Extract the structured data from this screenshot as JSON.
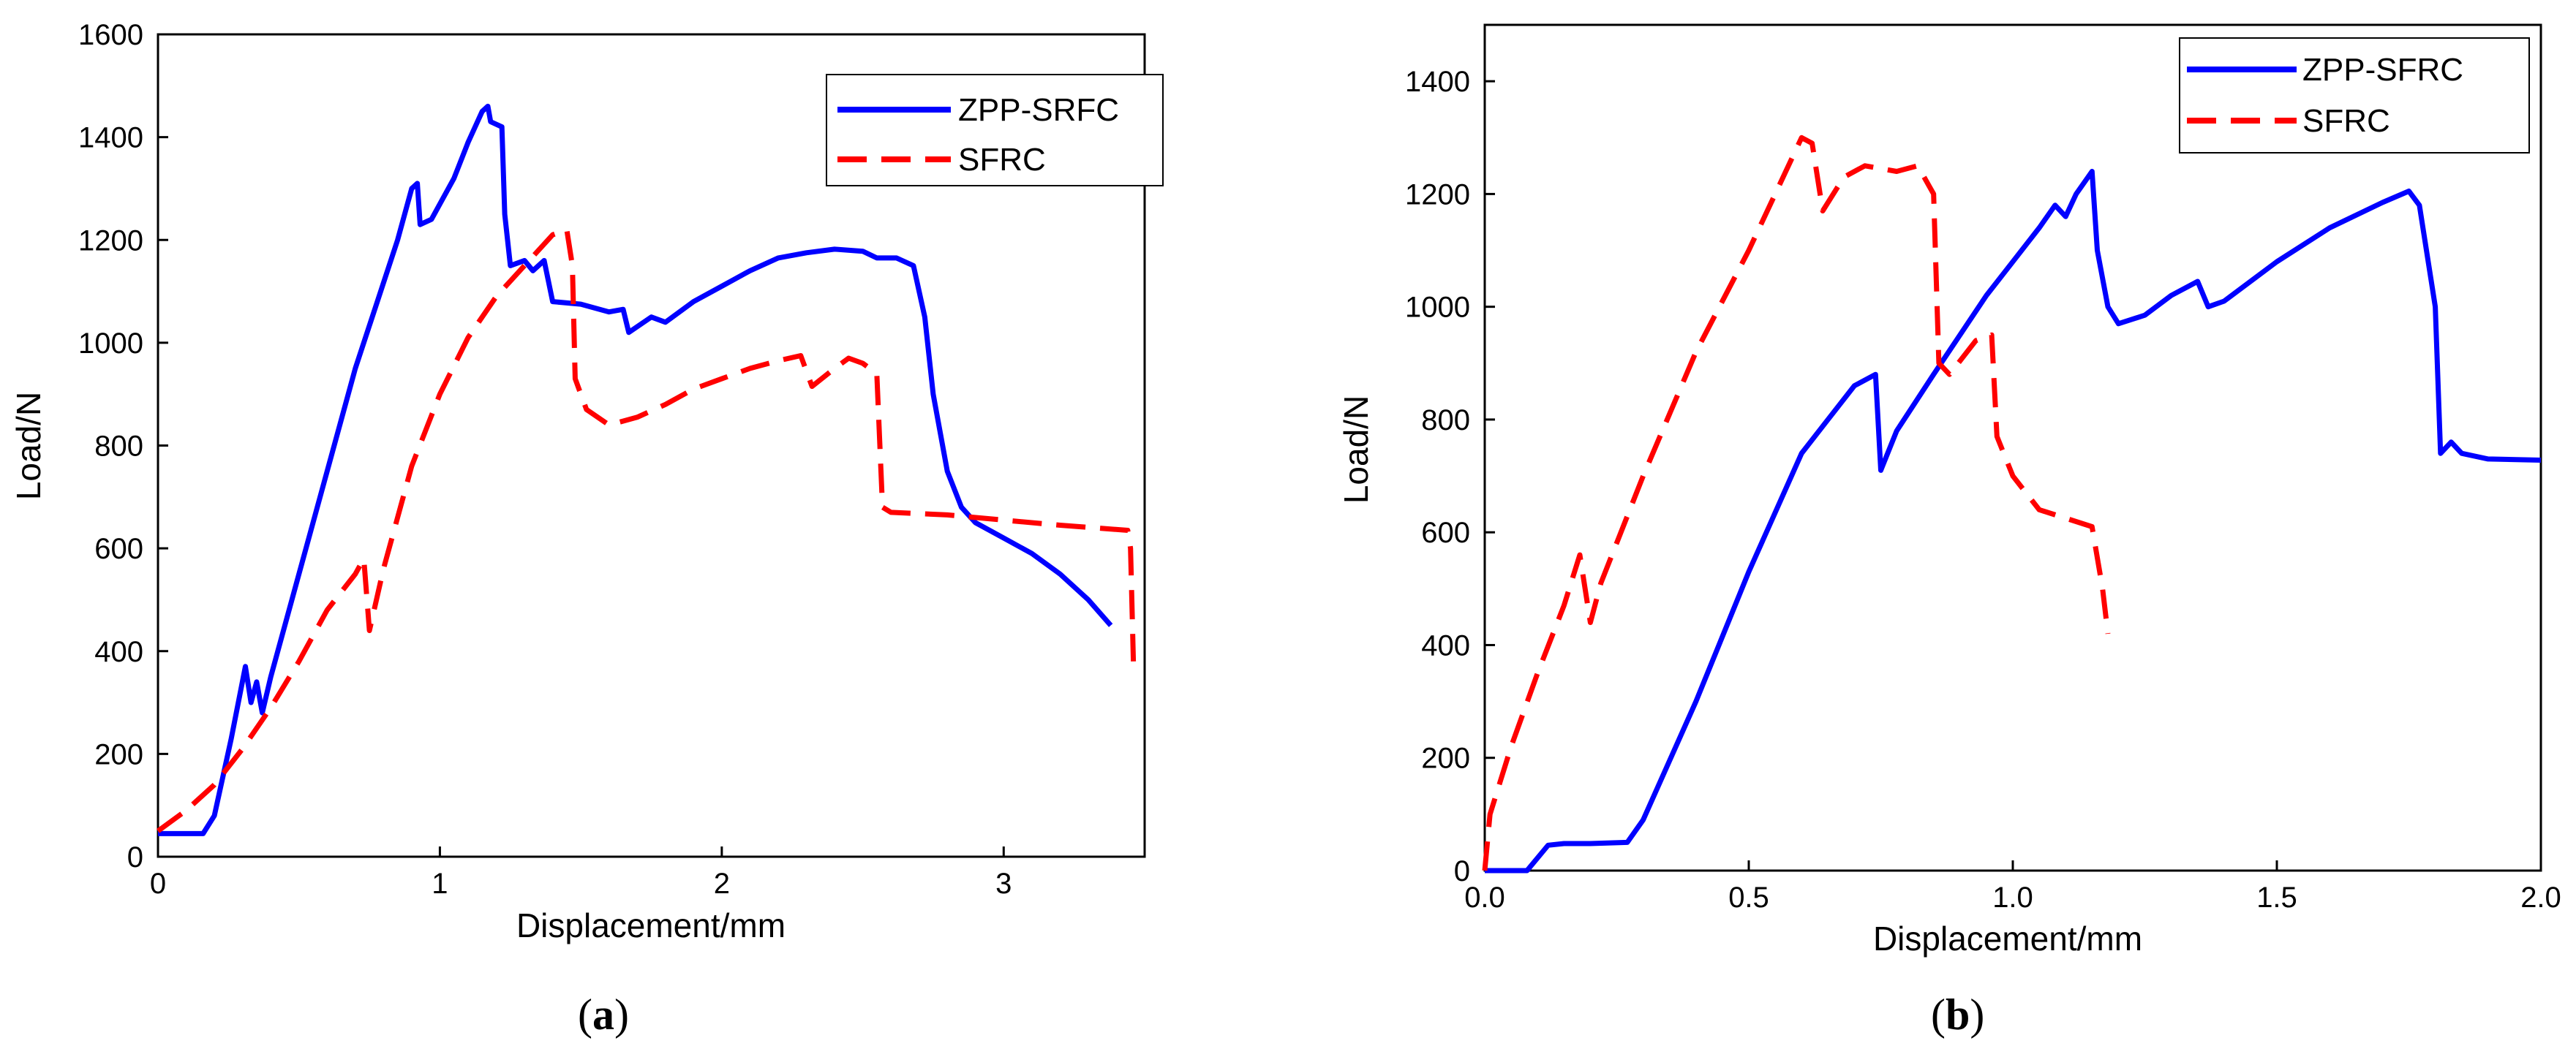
{
  "chart_data": [
    {
      "panel": "a",
      "caption": "(a)",
      "caption_letter": "a",
      "type": "line",
      "xlabel": "Displacement/mm",
      "ylabel": "Load/N",
      "xlim": [
        0,
        3.5
      ],
      "ylim": [
        0,
        1600
      ],
      "xticks": [
        0,
        1,
        2,
        3
      ],
      "xtick_labels": [
        "0",
        "1",
        "2",
        "3"
      ],
      "yticks": [
        0,
        200,
        400,
        600,
        800,
        1000,
        1200,
        1400,
        1600
      ],
      "ytick_labels": [
        "0",
        "200",
        "400",
        "600",
        "800",
        "1000",
        "1200",
        "1400",
        "1600"
      ],
      "grid": false,
      "legend_position": "top-right",
      "series": [
        {
          "name": "ZPP-SRFC",
          "color": "#0000ff",
          "style": "solid",
          "points": [
            [
              0,
              45
            ],
            [
              0.16,
              45
            ],
            [
              0.2,
              80
            ],
            [
              0.26,
              230
            ],
            [
              0.31,
              370
            ],
            [
              0.33,
              300
            ],
            [
              0.35,
              340
            ],
            [
              0.37,
              280
            ],
            [
              0.4,
              350
            ],
            [
              0.55,
              650
            ],
            [
              0.7,
              950
            ],
            [
              0.85,
              1200
            ],
            [
              0.9,
              1300
            ],
            [
              0.92,
              1310
            ],
            [
              0.93,
              1230
            ],
            [
              0.97,
              1240
            ],
            [
              1.05,
              1320
            ],
            [
              1.1,
              1390
            ],
            [
              1.15,
              1450
            ],
            [
              1.17,
              1460
            ],
            [
              1.18,
              1430
            ],
            [
              1.22,
              1420
            ],
            [
              1.23,
              1250
            ],
            [
              1.25,
              1150
            ],
            [
              1.3,
              1160
            ],
            [
              1.33,
              1140
            ],
            [
              1.37,
              1160
            ],
            [
              1.4,
              1080
            ],
            [
              1.5,
              1075
            ],
            [
              1.6,
              1060
            ],
            [
              1.65,
              1065
            ],
            [
              1.67,
              1020
            ],
            [
              1.75,
              1050
            ],
            [
              1.8,
              1040
            ],
            [
              1.9,
              1080
            ],
            [
              2.0,
              1110
            ],
            [
              2.1,
              1140
            ],
            [
              2.2,
              1165
            ],
            [
              2.3,
              1175
            ],
            [
              2.4,
              1182
            ],
            [
              2.5,
              1178
            ],
            [
              2.55,
              1165
            ],
            [
              2.62,
              1165
            ],
            [
              2.68,
              1150
            ],
            [
              2.72,
              1050
            ],
            [
              2.75,
              900
            ],
            [
              2.8,
              750
            ],
            [
              2.85,
              680
            ],
            [
              2.9,
              650
            ],
            [
              3.0,
              620
            ],
            [
              3.1,
              590
            ],
            [
              3.2,
              550
            ],
            [
              3.3,
              500
            ],
            [
              3.38,
              450
            ]
          ]
        },
        {
          "name": "SFRC",
          "color": "#ff0000",
          "style": "dashed",
          "points": [
            [
              0,
              50
            ],
            [
              0.1,
              90
            ],
            [
              0.2,
              140
            ],
            [
              0.3,
              210
            ],
            [
              0.4,
              290
            ],
            [
              0.5,
              380
            ],
            [
              0.6,
              480
            ],
            [
              0.7,
              550
            ],
            [
              0.73,
              580
            ],
            [
              0.75,
              440
            ],
            [
              0.8,
              560
            ],
            [
              0.9,
              760
            ],
            [
              1.0,
              900
            ],
            [
              1.1,
              1010
            ],
            [
              1.2,
              1090
            ],
            [
              1.3,
              1150
            ],
            [
              1.4,
              1210
            ],
            [
              1.45,
              1220
            ],
            [
              1.47,
              1150
            ],
            [
              1.48,
              930
            ],
            [
              1.52,
              870
            ],
            [
              1.6,
              840
            ],
            [
              1.7,
              855
            ],
            [
              1.8,
              880
            ],
            [
              1.9,
              910
            ],
            [
              2.0,
              930
            ],
            [
              2.1,
              950
            ],
            [
              2.2,
              965
            ],
            [
              2.28,
              975
            ],
            [
              2.32,
              915
            ],
            [
              2.4,
              950
            ],
            [
              2.45,
              970
            ],
            [
              2.5,
              960
            ],
            [
              2.55,
              940
            ],
            [
              2.57,
              680
            ],
            [
              2.6,
              670
            ],
            [
              2.8,
              665
            ],
            [
              3.0,
              655
            ],
            [
              3.2,
              645
            ],
            [
              3.44,
              635
            ],
            [
              3.45,
              600
            ],
            [
              3.46,
              380
            ]
          ]
        }
      ]
    },
    {
      "panel": "b",
      "caption": "(b)",
      "caption_letter": "b",
      "type": "line",
      "xlabel": "Displacement/mm",
      "ylabel": "Load/N",
      "xlim": [
        0,
        2.0
      ],
      "ylim": [
        0,
        1500
      ],
      "xticks": [
        0,
        0.5,
        1.0,
        1.5,
        2.0
      ],
      "xtick_labels": [
        "0.0",
        "0.5",
        "1.0",
        "1.5",
        "2.0"
      ],
      "yticks": [
        0,
        200,
        400,
        600,
        800,
        1000,
        1200,
        1400
      ],
      "ytick_labels": [
        "0",
        "200",
        "400",
        "600",
        "800",
        "1000",
        "1200",
        "1400"
      ],
      "grid": false,
      "legend_position": "top-right",
      "series": [
        {
          "name": "ZPP-SFRC",
          "color": "#0000ff",
          "style": "solid",
          "points": [
            [
              0,
              0
            ],
            [
              0.08,
              0
            ],
            [
              0.12,
              45
            ],
            [
              0.15,
              48
            ],
            [
              0.2,
              48
            ],
            [
              0.27,
              50
            ],
            [
              0.3,
              90
            ],
            [
              0.4,
              300
            ],
            [
              0.5,
              530
            ],
            [
              0.6,
              740
            ],
            [
              0.65,
              800
            ],
            [
              0.7,
              860
            ],
            [
              0.74,
              880
            ],
            [
              0.75,
              710
            ],
            [
              0.78,
              780
            ],
            [
              0.85,
              880
            ],
            [
              0.9,
              950
            ],
            [
              0.95,
              1020
            ],
            [
              1.0,
              1080
            ],
            [
              1.05,
              1140
            ],
            [
              1.08,
              1180
            ],
            [
              1.1,
              1160
            ],
            [
              1.12,
              1200
            ],
            [
              1.15,
              1240
            ],
            [
              1.16,
              1100
            ],
            [
              1.18,
              1000
            ],
            [
              1.2,
              970
            ],
            [
              1.25,
              985
            ],
            [
              1.3,
              1020
            ],
            [
              1.35,
              1045
            ],
            [
              1.37,
              1000
            ],
            [
              1.4,
              1010
            ],
            [
              1.5,
              1080
            ],
            [
              1.6,
              1140
            ],
            [
              1.7,
              1185
            ],
            [
              1.75,
              1205
            ],
            [
              1.77,
              1180
            ],
            [
              1.8,
              1000
            ],
            [
              1.81,
              740
            ],
            [
              1.83,
              760
            ],
            [
              1.85,
              740
            ],
            [
              1.9,
              730
            ],
            [
              2.0,
              728
            ]
          ]
        },
        {
          "name": "SFRC",
          "color": "#ff0000",
          "style": "dashed",
          "points": [
            [
              0,
              0
            ],
            [
              0.01,
              100
            ],
            [
              0.05,
              220
            ],
            [
              0.1,
              350
            ],
            [
              0.15,
              470
            ],
            [
              0.18,
              560
            ],
            [
              0.2,
              440
            ],
            [
              0.22,
              510
            ],
            [
              0.3,
              700
            ],
            [
              0.4,
              920
            ],
            [
              0.5,
              1100
            ],
            [
              0.55,
              1200
            ],
            [
              0.6,
              1300
            ],
            [
              0.62,
              1290
            ],
            [
              0.64,
              1170
            ],
            [
              0.68,
              1230
            ],
            [
              0.72,
              1250
            ],
            [
              0.78,
              1240
            ],
            [
              0.82,
              1250
            ],
            [
              0.85,
              1200
            ],
            [
              0.86,
              900
            ],
            [
              0.88,
              880
            ],
            [
              0.93,
              940
            ],
            [
              0.96,
              950
            ],
            [
              0.97,
              770
            ],
            [
              1.0,
              700
            ],
            [
              1.05,
              640
            ],
            [
              1.1,
              625
            ],
            [
              1.15,
              610
            ],
            [
              1.17,
              500
            ],
            [
              1.18,
              420
            ]
          ]
        }
      ]
    }
  ]
}
